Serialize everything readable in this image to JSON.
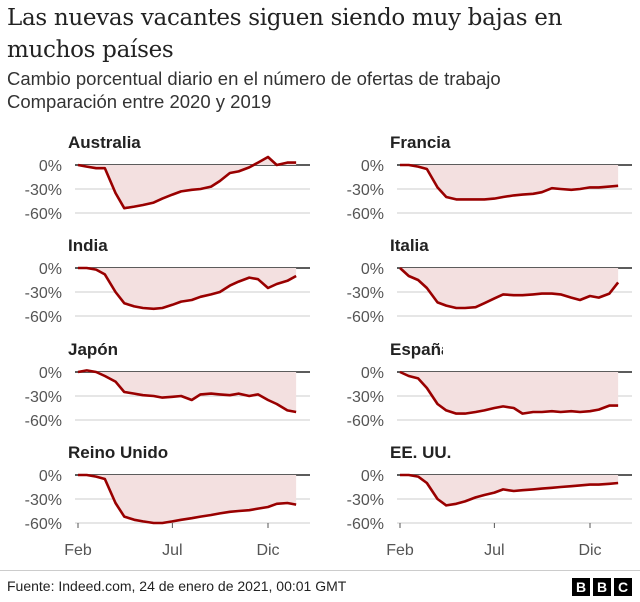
{
  "header": {
    "title": "Las nuevas vacantes siguen siendo muy bajas en muchos países",
    "subtitle_1": "Cambio porcentual diario en el número de ofertas de trabajo",
    "subtitle_2": "Comparación entre 2020 y 2019"
  },
  "footer": {
    "source": "Fuente: Indeed.com, 24 de enero de 2021, 00:01 GMT",
    "logo": "BBC"
  },
  "colors": {
    "line": "#990000",
    "fill": "#f3e0e0",
    "zero_line": "#444444",
    "grid": "#cccccc"
  },
  "chart_data": {
    "type": "line",
    "layout": "small multiples, 4 rows x 2 columns",
    "ylabel": "",
    "xlabel": "",
    "y_ticks": [
      "0%",
      "-30%",
      "-60%"
    ],
    "y_tick_values": [
      0,
      -30,
      -60
    ],
    "x_ticks": [
      "Feb",
      "Jul",
      "Dic"
    ],
    "x_tick_dates": [
      "2020-02-01",
      "2020-07-01",
      "2020-12-01"
    ],
    "x_range": [
      "2020-02-01",
      "2021-01-18"
    ],
    "x": [
      "2020-02-01",
      "2020-02-15",
      "2020-03-01",
      "2020-03-15",
      "2020-04-01",
      "2020-04-15",
      "2020-05-01",
      "2020-05-15",
      "2020-06-01",
      "2020-06-15",
      "2020-07-01",
      "2020-07-15",
      "2020-08-01",
      "2020-08-15",
      "2020-09-01",
      "2020-09-15",
      "2020-10-01",
      "2020-10-15",
      "2020-11-01",
      "2020-11-15",
      "2020-12-01",
      "2020-12-15",
      "2021-01-01",
      "2021-01-15"
    ],
    "series": [
      {
        "name": "Australia",
        "values": [
          0,
          -2,
          -4,
          -4,
          -35,
          -54,
          -52,
          -50,
          -47,
          -42,
          -37,
          -33,
          -31,
          -30,
          -27,
          -20,
          -10,
          -8,
          -3,
          3,
          10,
          0,
          3,
          3
        ]
      },
      {
        "name": "Francia",
        "values": [
          0,
          0,
          -2,
          -5,
          -28,
          -40,
          -43,
          -43,
          -43,
          -43,
          -42,
          -40,
          -38,
          -37,
          -36,
          -34,
          -29,
          -30,
          -31,
          -30,
          -28,
          -28,
          -27,
          -26
        ]
      },
      {
        "name": "India",
        "values": [
          0,
          0,
          -2,
          -8,
          -30,
          -44,
          -48,
          -50,
          -51,
          -50,
          -46,
          -42,
          -40,
          -36,
          -33,
          -30,
          -22,
          -17,
          -12,
          -14,
          -25,
          -20,
          -16,
          -10
        ]
      },
      {
        "name": "Italia",
        "values": [
          0,
          -10,
          -15,
          -25,
          -43,
          -47,
          -50,
          -50,
          -49,
          -44,
          -38,
          -33,
          -34,
          -34,
          -33,
          -32,
          -32,
          -33,
          -37,
          -40,
          -35,
          -37,
          -32,
          -18
        ]
      },
      {
        "name": "Japón",
        "values": [
          0,
          2,
          0,
          -5,
          -12,
          -25,
          -27,
          -29,
          -30,
          -32,
          -31,
          -30,
          -35,
          -28,
          -27,
          -28,
          -29,
          -27,
          -30,
          -28,
          -35,
          -40,
          -48,
          -50
        ]
      },
      {
        "name": "España",
        "values": [
          0,
          -5,
          -8,
          -20,
          -40,
          -48,
          -52,
          -52,
          -50,
          -48,
          -45,
          -43,
          -45,
          -52,
          -50,
          -50,
          -49,
          -50,
          -49,
          -50,
          -49,
          -47,
          -42,
          -42
        ]
      },
      {
        "name": "Reino Unido",
        "values": [
          0,
          0,
          -2,
          -5,
          -35,
          -52,
          -56,
          -58,
          -60,
          -60,
          -58,
          -56,
          -54,
          -52,
          -50,
          -48,
          -46,
          -45,
          -44,
          -42,
          -40,
          -36,
          -35,
          -37
        ]
      },
      {
        "name": "EE. UU.",
        "values": [
          0,
          0,
          -2,
          -10,
          -30,
          -38,
          -36,
          -33,
          -28,
          -25,
          -22,
          -18,
          -20,
          -19,
          -18,
          -17,
          -16,
          -15,
          -14,
          -13,
          -12,
          -12,
          -11,
          -10
        ]
      }
    ]
  }
}
